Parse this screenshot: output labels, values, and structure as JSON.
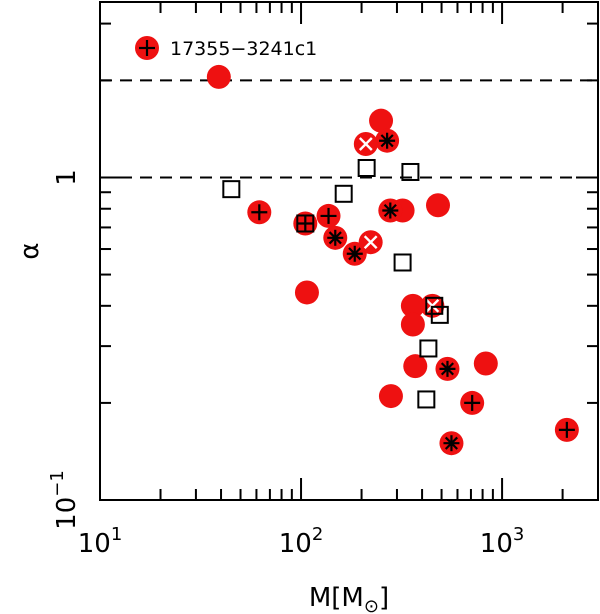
{
  "chart_data": {
    "type": "scatter",
    "title": "",
    "xlabel": "M[M",
    "xlabel_sub": "⊙",
    "xlabel_close": "]",
    "ylabel": "α",
    "xscale": "log",
    "yscale": "log",
    "xlim": [
      10,
      3000
    ],
    "ylim": [
      0.1,
      3.5
    ],
    "x_ticks": [
      {
        "value": 10,
        "base": "10",
        "exp": "1"
      },
      {
        "value": 100,
        "base": "10",
        "exp": "2"
      },
      {
        "value": 1000,
        "base": "10",
        "exp": "3"
      }
    ],
    "y_ticks": [
      {
        "value": 0.1,
        "base": "10",
        "exp": "−1"
      },
      {
        "value": 1,
        "text": "1"
      }
    ],
    "reference_lines": [
      1.0,
      2.0
    ],
    "legend": {
      "placement": "top-left",
      "label": "17355−3241c1",
      "marker": "filled-plus"
    },
    "series": [
      {
        "marker": "filled",
        "points": [
          {
            "x": 39,
            "y": 2.05
          },
          {
            "x": 107,
            "y": 0.44
          },
          {
            "x": 250,
            "y": 1.5
          },
          {
            "x": 480,
            "y": 0.82
          },
          {
            "x": 360,
            "y": 0.4
          },
          {
            "x": 360,
            "y": 0.35
          },
          {
            "x": 370,
            "y": 0.26
          },
          {
            "x": 280,
            "y": 0.21
          },
          {
            "x": 830,
            "y": 0.265
          },
          {
            "x": 320,
            "y": 0.79
          }
        ]
      },
      {
        "marker": "filled-plus",
        "points": [
          {
            "x": 62,
            "y": 0.78
          },
          {
            "x": 105,
            "y": 0.72
          },
          {
            "x": 137,
            "y": 0.76
          },
          {
            "x": 710,
            "y": 0.2
          },
          {
            "x": 2100,
            "y": 0.165
          }
        ]
      },
      {
        "marker": "filled-asterisk",
        "points": [
          {
            "x": 268,
            "y": 1.3
          },
          {
            "x": 278,
            "y": 0.79
          },
          {
            "x": 148,
            "y": 0.65
          },
          {
            "x": 185,
            "y": 0.58
          },
          {
            "x": 535,
            "y": 0.255
          },
          {
            "x": 560,
            "y": 0.15
          }
        ]
      },
      {
        "marker": "filled-cross",
        "points": [
          {
            "x": 222,
            "y": 0.63
          },
          {
            "x": 210,
            "y": 1.27
          },
          {
            "x": 450,
            "y": 0.4
          }
        ]
      },
      {
        "marker": "open-square",
        "points": [
          {
            "x": 45,
            "y": 0.92
          },
          {
            "x": 105,
            "y": 0.72
          },
          {
            "x": 163,
            "y": 0.89
          },
          {
            "x": 212,
            "y": 1.07
          },
          {
            "x": 350,
            "y": 1.04
          },
          {
            "x": 320,
            "y": 0.545
          },
          {
            "x": 460,
            "y": 0.4
          },
          {
            "x": 490,
            "y": 0.375
          },
          {
            "x": 430,
            "y": 0.295
          },
          {
            "x": 420,
            "y": 0.205
          }
        ]
      }
    ],
    "colors": {
      "fill": "#ee1111",
      "line": "#000000",
      "cross": "#ffffff",
      "frame": "#000000"
    }
  }
}
